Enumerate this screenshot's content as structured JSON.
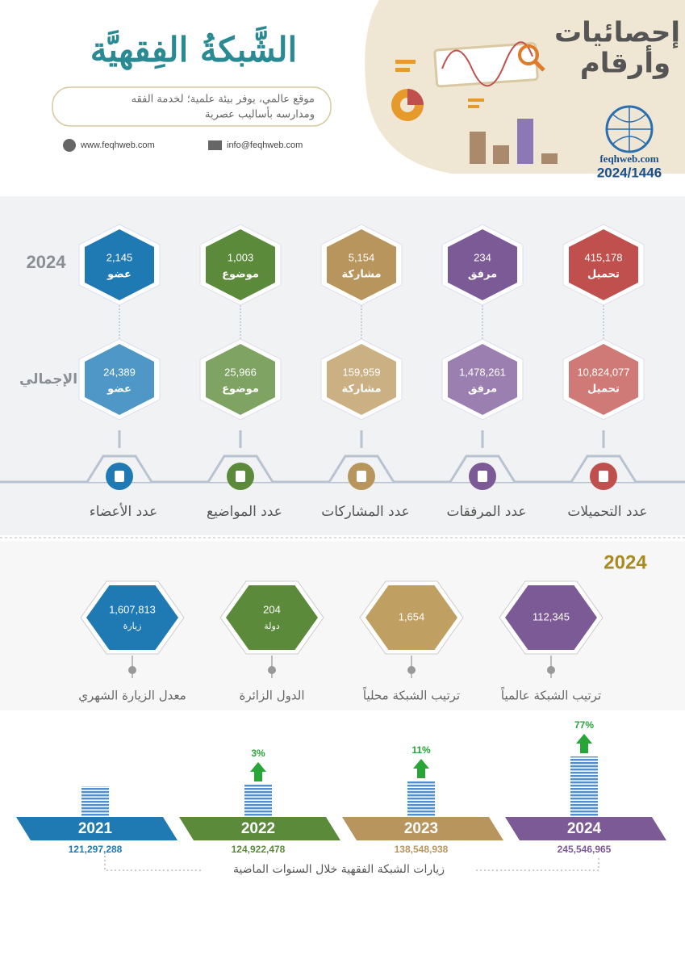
{
  "header": {
    "logo_title": "الشَّبكةُ الفِقهيَّة",
    "tagline": [
      "موقع عالمي، يوفر بيئة علمية؛ لخدمة الفقه",
      "ومدارسه بأساليب عصرية"
    ],
    "website": "www.feqhweb.com",
    "email": "info@feqhweb.com",
    "banner_title": [
      "إحصائيات",
      "وأرقام"
    ],
    "brand": "feqhweb.com",
    "year": "2024/1446"
  },
  "stats": {
    "year_label": "2024",
    "total_label": "الإجمالي",
    "columns": [
      {
        "label": "عدد التحميلات",
        "year_value": "415,178",
        "total_value": "10,824,077",
        "unit": "تحميل",
        "color": "#c0504d",
        "light": "#cf7a76"
      },
      {
        "label": "عدد المرفقات",
        "year_value": "234",
        "total_value": "1,478,261",
        "unit": "مرفق",
        "color": "#7b5a96",
        "light": "#9a7fb0"
      },
      {
        "label": "عدد المشاركات",
        "year_value": "5,154",
        "total_value": "159,959",
        "unit": "مشاركة",
        "color": "#b8955c",
        "light": "#cbb084"
      },
      {
        "label": "عدد المواضيع",
        "year_value": "1,003",
        "total_value": "25,966",
        "unit": "موضوع",
        "color": "#5b8a3a",
        "light": "#7fa362"
      },
      {
        "label": "عدد الأعضاء",
        "year_value": "2,145",
        "total_value": "24,389",
        "unit": "عضو",
        "color": "#1f7ab3",
        "light": "#4f97c6"
      }
    ]
  },
  "ranking": {
    "year_label": "2024",
    "items": [
      {
        "label": "ترتيب الشبكة عالمياً",
        "value": "112,345",
        "unit": null,
        "color": "#7b5a96"
      },
      {
        "label": "ترتيب الشبكة محلياً",
        "value": "1,654",
        "unit": null,
        "color": "#bf9f62"
      },
      {
        "label": "الدول الزائرة",
        "value": "204",
        "unit": "دولة",
        "color": "#5b8a3a"
      },
      {
        "label": "معدل الزيارة الشهري",
        "value": "1,607,813",
        "unit": "زيارة",
        "color": "#1f7ab3"
      }
    ]
  },
  "visits": {
    "caption": "زيارات الشبكة الفقهية خلال السنوات الماضية",
    "years": [
      {
        "year": "2021",
        "total": "121,297,288",
        "growth": null,
        "color": "#1f7ab3"
      },
      {
        "year": "2022",
        "total": "124,922,478",
        "growth": "3%",
        "color": "#5b8a3a"
      },
      {
        "year": "2023",
        "total": "138,548,938",
        "growth": "11%",
        "color": "#b8955c"
      },
      {
        "year": "2024",
        "total": "245,546,965",
        "growth": "77%",
        "color": "#7b5a96"
      }
    ]
  }
}
